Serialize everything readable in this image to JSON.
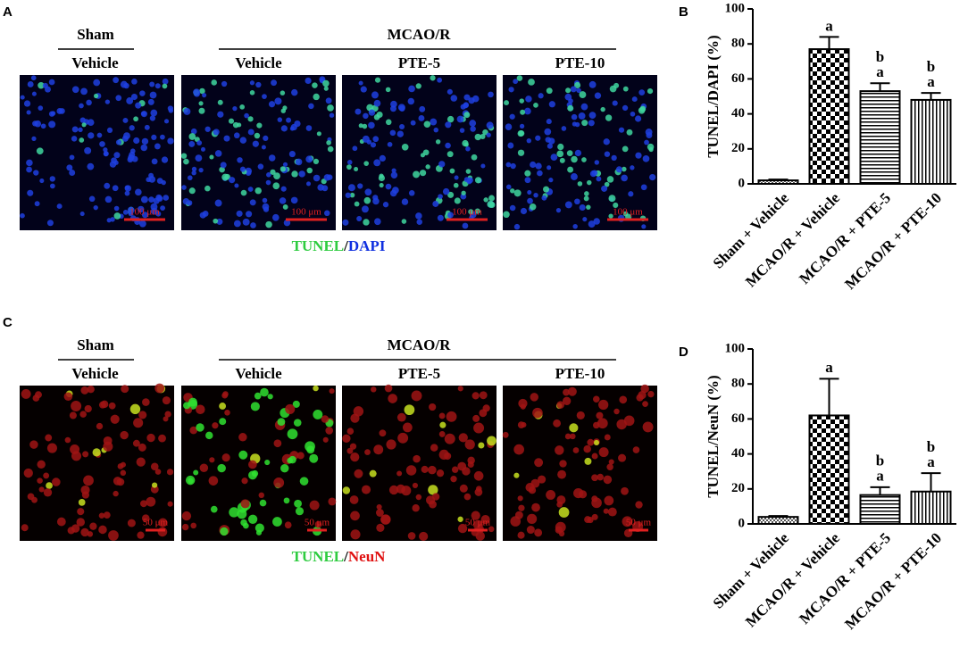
{
  "image_panels": [
    {
      "label": "A",
      "sham_header": "Sham",
      "model_header": "MCAO/R",
      "column_labels": [
        "Vehicle",
        "Vehicle",
        "PTE-5",
        "PTE-10"
      ],
      "stain_green": "TUNEL",
      "separator": "/",
      "stain_other": "DAPI",
      "scale_bar": "100 μm"
    },
    {
      "label": "C",
      "sham_header": "Sham",
      "model_header": "MCAO/R",
      "column_labels": [
        "Vehicle",
        "Vehicle",
        "PTE-5",
        "PTE-10"
      ],
      "stain_green": "TUNEL",
      "separator": "/",
      "stain_other": "NeuN",
      "scale_bar": "50 μm"
    }
  ],
  "chart_data": [
    {
      "type": "bar",
      "panel_label": "B",
      "y_label": "TUNEL/DAPI (%)",
      "categories": [
        "Sham + Vehicle",
        "MCAO/R + Vehicle",
        "MCAO/R + PTE-5",
        "MCAO/R + PTE-10"
      ],
      "values": [
        2,
        77,
        53,
        48
      ],
      "errors": [
        0.5,
        7,
        4.5,
        4
      ],
      "annotations": [
        null,
        [
          "a"
        ],
        [
          "b",
          "a"
        ],
        [
          "b",
          "a"
        ]
      ],
      "patterns": [
        "fine-check",
        "check",
        "horizontal",
        "vertical"
      ],
      "ylim": [
        0,
        100
      ],
      "yticks": [
        0,
        20,
        40,
        60,
        80,
        100
      ],
      "grid": false
    },
    {
      "type": "bar",
      "panel_label": "D",
      "y_label": "TUNEL/NeuN (%)",
      "categories": [
        "Sham + Vehicle",
        "MCAO/R + Vehicle",
        "MCAO/R + PTE-5",
        "MCAO/R + PTE-10"
      ],
      "values": [
        4,
        62,
        16.5,
        18.5
      ],
      "errors": [
        0.5,
        21,
        4.5,
        10.5
      ],
      "annotations": [
        null,
        [
          "a"
        ],
        [
          "b",
          "a"
        ],
        [
          "b",
          "a"
        ]
      ],
      "patterns": [
        "fine-check",
        "check",
        "horizontal",
        "vertical"
      ],
      "ylim": [
        0,
        100
      ],
      "yticks": [
        0,
        20,
        40,
        60,
        80,
        100
      ],
      "grid": false
    }
  ]
}
